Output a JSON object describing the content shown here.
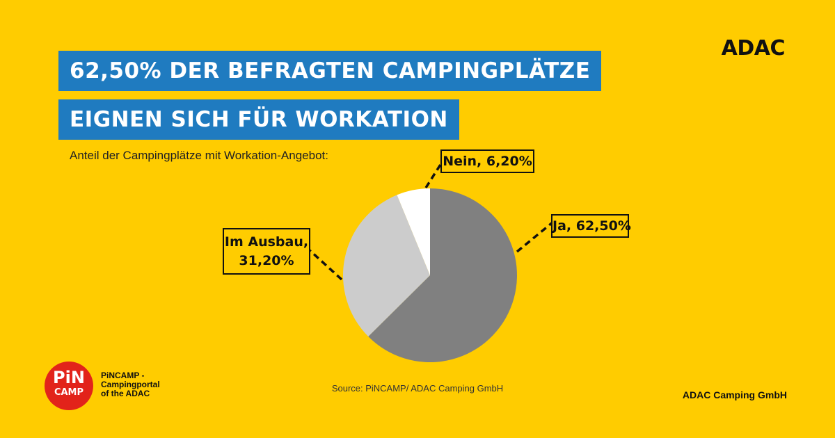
{
  "header": {
    "title_line1": "62,50% DER BEFRAGTEN CAMPINGPLÄTZE",
    "title_line2": "EIGNEN SICH FÜR WORKATION",
    "subtitle": "Anteil der Campingplätze mit Workation-Angebot:",
    "brand": "ADAC"
  },
  "chart_data": {
    "type": "pie",
    "start": "12 o'clock",
    "direction": "clockwise",
    "slices": [
      {
        "label": "Ja",
        "value": 62.5,
        "color": "#808080",
        "display": "Ja, 62,50%"
      },
      {
        "label": "Im Ausbau",
        "value": 31.2,
        "color": "#CCCCCC",
        "display_line1": "Im Ausbau,",
        "display_line2": "31,20%"
      },
      {
        "label": "Nein",
        "value": 6.2,
        "color": "#FFFFFF",
        "display": "Nein, 6,20%"
      }
    ]
  },
  "footer": {
    "source": "Source: PiNCAMP/ ADAC Camping GmbH",
    "company": "ADAC Camping GmbH",
    "logo_pin": "PiN",
    "logo_camp": "CAMP",
    "logo_text_line1": "PiNCAMP -",
    "logo_text_line2": "Campingportal",
    "logo_text_line3": "of the ADAC"
  },
  "colors": {
    "background": "#FFCC00",
    "title_bar": "#1F7BC0",
    "logo": "#E2231A"
  }
}
